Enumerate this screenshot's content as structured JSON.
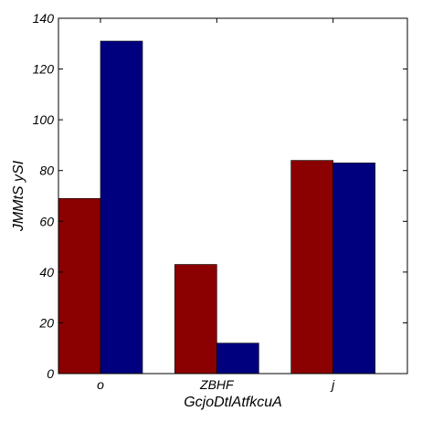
{
  "chart_data": {
    "type": "bar",
    "xlabel": "GcjoDtlAtfkcuA",
    "ylabel": "JMMtS ySI",
    "categories": [
      "o",
      "ZBHF",
      "j"
    ],
    "series": [
      {
        "values": [
          69,
          43,
          84
        ],
        "color": "#8b0000"
      },
      {
        "values": [
          131,
          12,
          83
        ],
        "color": "#00007f"
      }
    ],
    "ylim": [
      0,
      140
    ],
    "yticks": [
      0,
      20,
      40,
      60,
      80,
      100,
      120,
      140
    ],
    "grid": false,
    "legend": "none"
  }
}
